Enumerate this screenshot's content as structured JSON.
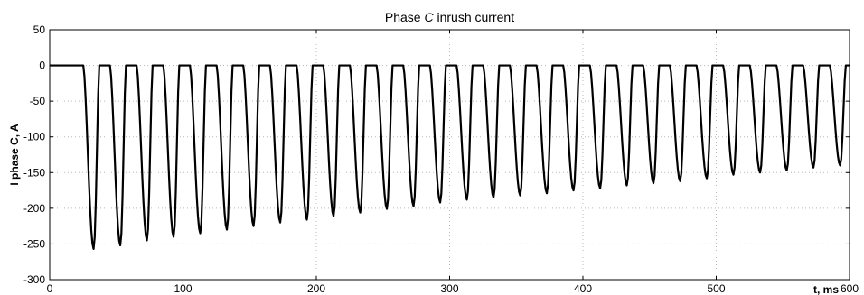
{
  "chart_data": {
    "type": "line",
    "title": {
      "prefix": "Phase ",
      "italic": "C",
      "suffix": " inrush current"
    },
    "xlabel": "t, ms",
    "ylabel": "I phase C, A",
    "xlim": [
      0,
      600
    ],
    "ylim": [
      -300,
      50
    ],
    "x_ticks": [
      0,
      100,
      200,
      300,
      400,
      500,
      600
    ],
    "y_ticks": [
      50,
      0,
      -50,
      -100,
      -150,
      -200,
      -250,
      -300
    ],
    "grid": true,
    "series": [
      {
        "baseline": 0,
        "energize_time_ms": 25,
        "period_ms": 20,
        "pulse_width_ms": 12,
        "peaks": [
          {
            "t": 33,
            "value": -257
          },
          {
            "t": 53,
            "value": -252
          },
          {
            "t": 73,
            "value": -245
          },
          {
            "t": 93,
            "value": -240
          },
          {
            "t": 113,
            "value": -235
          },
          {
            "t": 133,
            "value": -230
          },
          {
            "t": 153,
            "value": -225
          },
          {
            "t": 173,
            "value": -220
          },
          {
            "t": 193,
            "value": -216
          },
          {
            "t": 213,
            "value": -211
          },
          {
            "t": 233,
            "value": -206
          },
          {
            "t": 253,
            "value": -201
          },
          {
            "t": 273,
            "value": -197
          },
          {
            "t": 293,
            "value": -192
          },
          {
            "t": 313,
            "value": -188
          },
          {
            "t": 333,
            "value": -185
          },
          {
            "t": 353,
            "value": -182
          },
          {
            "t": 373,
            "value": -179
          },
          {
            "t": 393,
            "value": -175
          },
          {
            "t": 413,
            "value": -172
          },
          {
            "t": 433,
            "value": -168
          },
          {
            "t": 453,
            "value": -165
          },
          {
            "t": 473,
            "value": -162
          },
          {
            "t": 493,
            "value": -158
          },
          {
            "t": 513,
            "value": -153
          },
          {
            "t": 533,
            "value": -150
          },
          {
            "t": 553,
            "value": -147
          },
          {
            "t": 573,
            "value": -143
          },
          {
            "t": 593,
            "value": -140
          }
        ]
      }
    ]
  }
}
